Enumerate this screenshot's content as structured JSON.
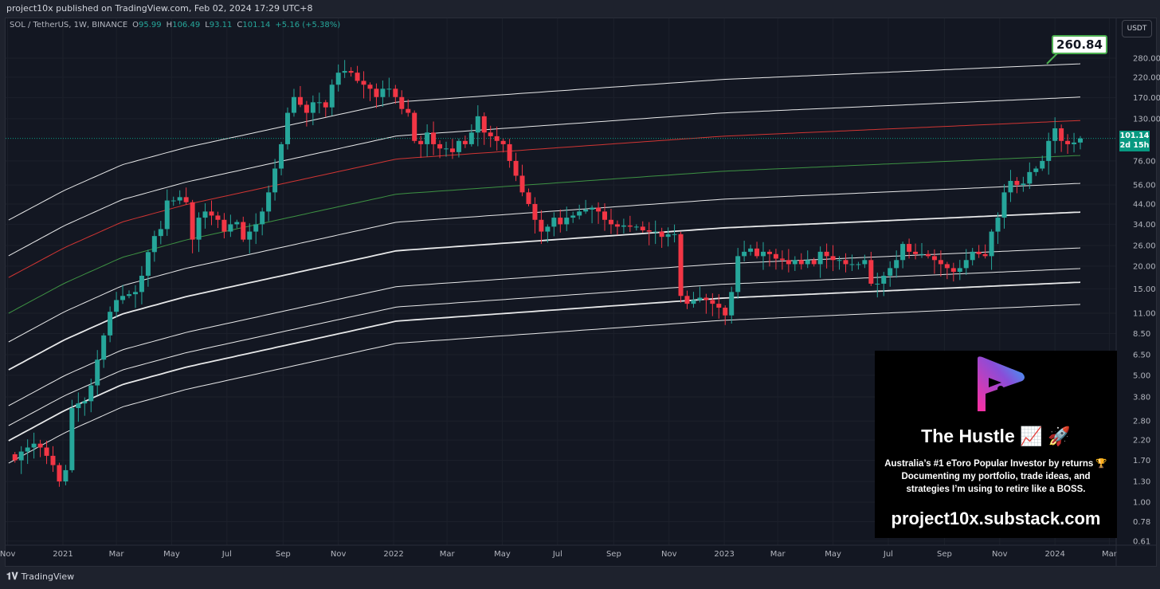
{
  "header": {
    "published": "project10x published on TradingView.com, Feb 02, 2024 17:29 UTC+8"
  },
  "legend": {
    "symbol": "SOL / TetherUS, 1W, BINANCE",
    "o_label": "O",
    "o": "95.99",
    "h_label": "H",
    "h": "106.49",
    "l_label": "L",
    "l": "93.11",
    "c_label": "C",
    "c": "101.14",
    "change": "+5.16 (+5.38%)"
  },
  "currency_button": "USDT",
  "annotation": {
    "label": "260.84"
  },
  "last_price": {
    "price": "101.14",
    "countdown": "2d 15h"
  },
  "footer": {
    "brand": "TradingView"
  },
  "promo": {
    "title": "The Hustle 📈 🚀",
    "line1": "Australia’s #1 eToro Popular Investor by returns 🏆",
    "line2": "Documenting my portfolio, trade ideas, and",
    "line3": "strategies I’m using to retire like a BOSS.",
    "url": "project10x.substack.com"
  },
  "colors": {
    "up": "#26a69a",
    "down": "#f23645",
    "background": "#131722",
    "band": "#ffffff",
    "band_red": "#e53935",
    "band_green": "#43a047"
  },
  "chart_data": {
    "type": "candlestick",
    "scale": "log",
    "interval": "1W",
    "last_week": "2024-01-29",
    "closes": [
      1.7,
      1.9,
      2.0,
      2.1,
      2.0,
      1.8,
      1.6,
      1.3,
      1.5,
      3.3,
      3.5,
      3.6,
      4.4,
      6.1,
      8.3,
      11.2,
      13,
      13.7,
      14,
      14.4,
      17.7,
      23.9,
      29.3,
      32,
      46,
      46,
      48,
      45,
      28,
      37,
      40,
      38,
      36,
      31,
      34,
      35,
      28,
      31,
      34,
      40,
      51,
      69,
      94,
      140,
      171,
      155,
      140,
      160,
      160,
      150,
      200,
      233,
      238,
      233,
      210,
      200,
      190,
      171,
      190,
      190,
      171,
      147,
      140,
      98,
      94,
      109,
      94,
      89,
      89,
      85,
      98,
      94,
      109,
      134,
      109,
      104,
      98,
      94,
      76,
      63,
      51,
      44,
      36,
      31,
      33,
      37,
      34,
      37,
      38,
      40,
      41,
      42,
      40,
      36,
      34,
      33,
      33.5,
      33,
      33,
      31.5,
      31,
      31,
      29,
      30,
      30,
      13.7,
      12.4,
      13,
      13.4,
      13,
      12.4,
      11.8,
      10.7,
      14.4,
      22.7,
      24,
      25,
      22.7,
      24,
      23.3,
      22,
      21.6,
      20.5,
      21.6,
      20.5,
      21.6,
      20.5,
      24,
      22.7,
      21.6,
      21.6,
      20.5,
      20.5,
      20.5,
      21.6,
      16,
      16,
      17.7,
      19.5,
      21.6,
      26.5,
      24,
      23.3,
      23.3,
      22.7,
      21.6,
      20.5,
      19.5,
      18.6,
      19.5,
      21.6,
      24,
      23.3,
      22.7,
      31,
      37,
      51,
      59,
      56,
      57,
      66,
      69,
      76,
      98,
      115,
      98,
      94,
      96,
      101.14
    ],
    "bands": [
      {
        "color": "#ffffff",
        "start": 35.9,
        "end": 260.84
      },
      {
        "color": "#ffffff",
        "start": 22.8,
        "end": 171
      },
      {
        "color": "#e53935",
        "start": 17.3,
        "end": 127
      },
      {
        "color": "#43a047",
        "start": 11.0,
        "end": 81.5
      },
      {
        "color": "#ffffff",
        "start": 7.64,
        "end": 57.2
      },
      {
        "color": "#ffffff",
        "start": 5.36,
        "end": 39.7
      },
      {
        "color": "#ffffff",
        "start": 3.4,
        "end": 25.2
      },
      {
        "color": "#ffffff",
        "start": 2.64,
        "end": 19.4
      },
      {
        "color": "#ffffff",
        "start": 2.18,
        "end": 16.3
      },
      {
        "color": "#ffffff",
        "start": 1.64,
        "end": 12.3
      }
    ],
    "band_dates": [
      "2020-11-02",
      "2024-01-29"
    ],
    "y_ticks": [
      "280.00",
      "220.00",
      "170.00",
      "130.00",
      "76.00",
      "56.00",
      "44.00",
      "34.00",
      "26.00",
      "20.00",
      "15.00",
      "11.00",
      "8.50",
      "6.50",
      "5.00",
      "3.80",
      "2.80",
      "2.20",
      "1.70",
      "1.30",
      "1.00",
      "0.78",
      "0.61"
    ],
    "x_ticks": [
      {
        "label": "Nov",
        "date": "2020-11-01"
      },
      {
        "label": "2021",
        "date": "2021-01-01"
      },
      {
        "label": "Mar",
        "date": "2021-03-01"
      },
      {
        "label": "May",
        "date": "2021-05-01"
      },
      {
        "label": "Jul",
        "date": "2021-07-01"
      },
      {
        "label": "Sep",
        "date": "2021-09-01"
      },
      {
        "label": "Nov",
        "date": "2021-11-01"
      },
      {
        "label": "2022",
        "date": "2022-01-01"
      },
      {
        "label": "Mar",
        "date": "2022-03-01"
      },
      {
        "label": "May",
        "date": "2022-05-01"
      },
      {
        "label": "Jul",
        "date": "2022-07-01"
      },
      {
        "label": "Sep",
        "date": "2022-09-01"
      },
      {
        "label": "Nov",
        "date": "2022-11-01"
      },
      {
        "label": "2023",
        "date": "2023-01-01"
      },
      {
        "label": "Mar",
        "date": "2023-03-01"
      },
      {
        "label": "May",
        "date": "2023-05-01"
      },
      {
        "label": "Jul",
        "date": "2023-07-01"
      },
      {
        "label": "Sep",
        "date": "2023-09-01"
      },
      {
        "label": "Nov",
        "date": "2023-11-01"
      },
      {
        "label": "2024",
        "date": "2024-01-01"
      },
      {
        "label": "Mar",
        "date": "2024-03-01"
      }
    ]
  }
}
